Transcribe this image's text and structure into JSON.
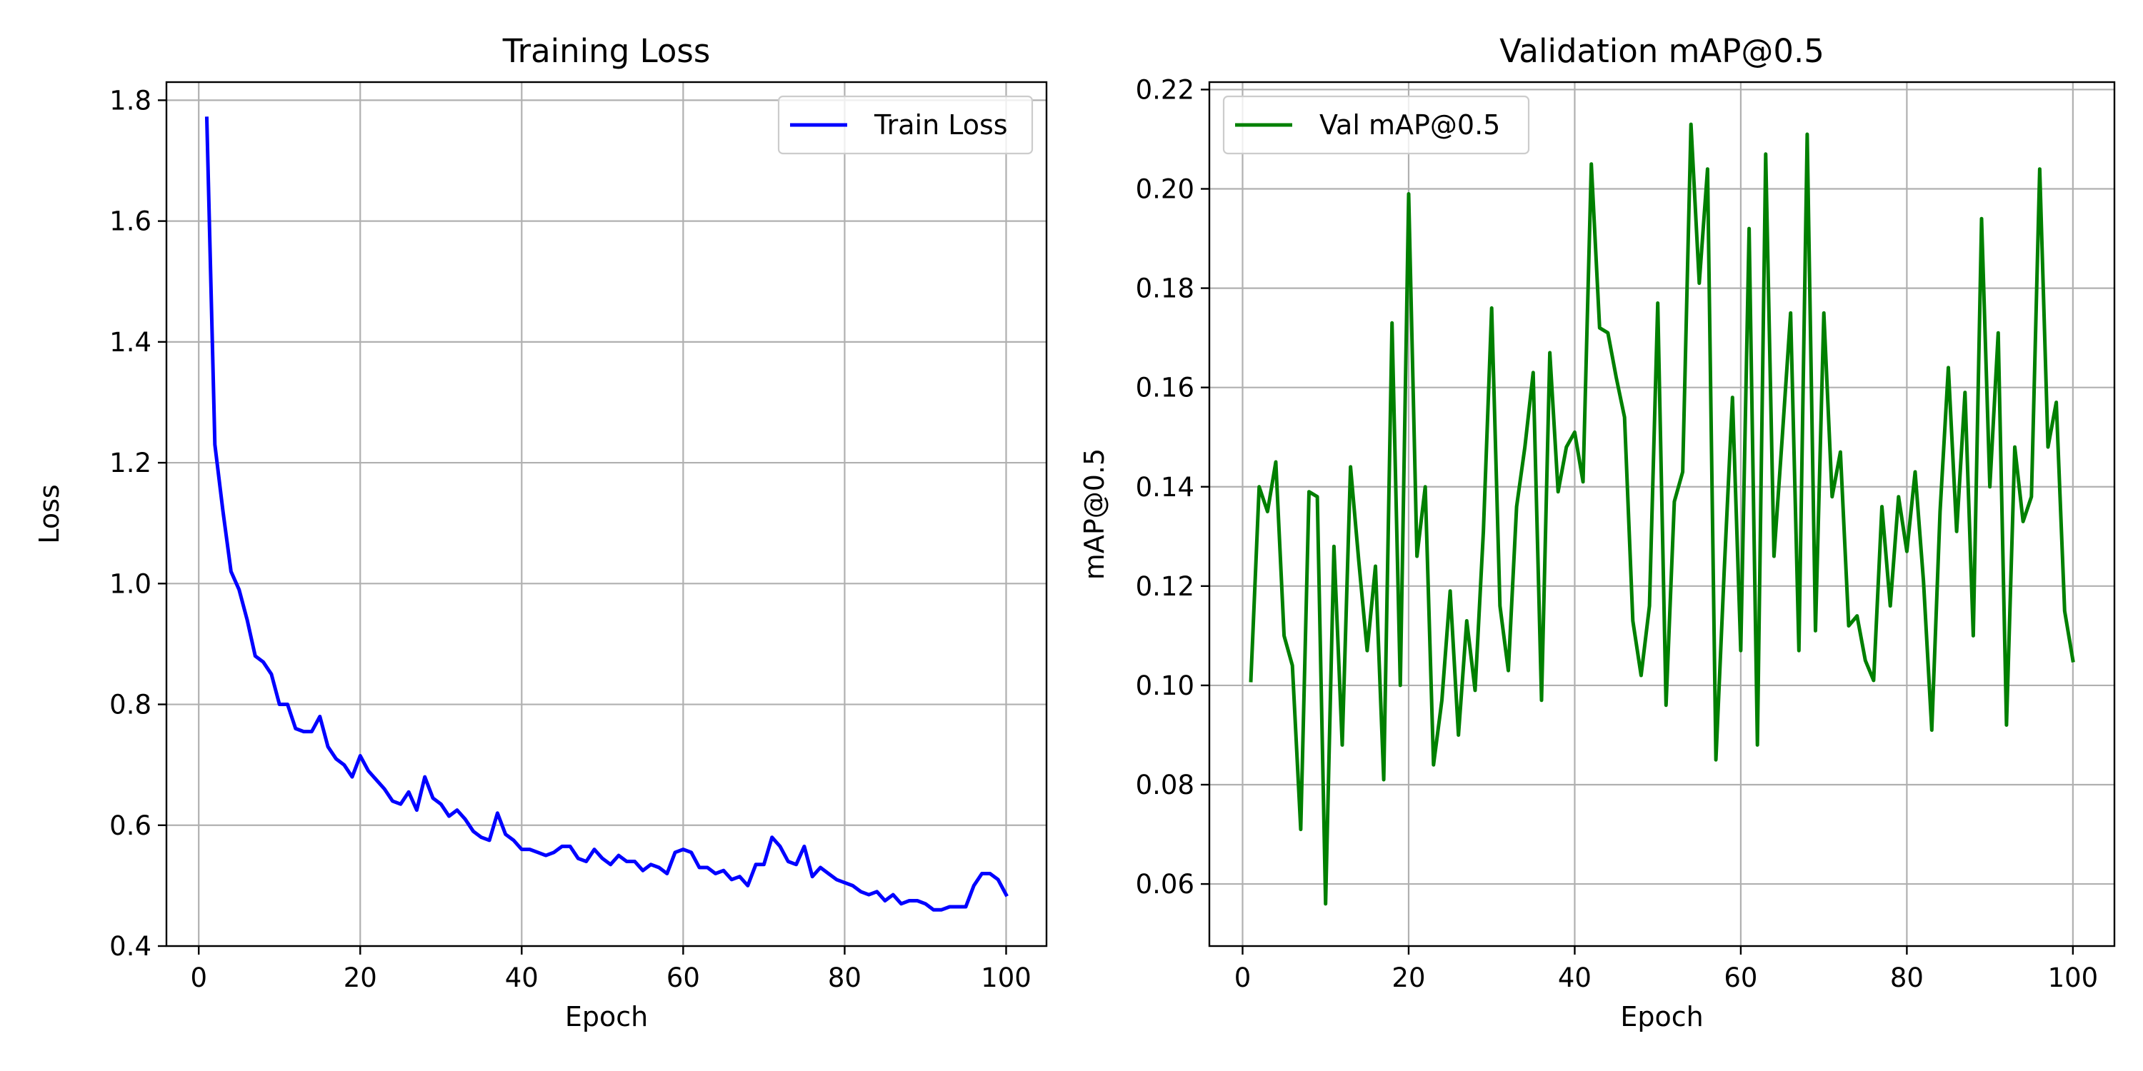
{
  "chart_data": [
    {
      "type": "line",
      "title": "Training Loss",
      "xlabel": "Epoch",
      "ylabel": "Loss",
      "xlim": [
        -4,
        105
      ],
      "ylim": [
        0.4,
        1.83
      ],
      "xticks": [
        0,
        20,
        40,
        60,
        80,
        100
      ],
      "yticks": [
        0.4,
        0.6,
        0.8,
        1.0,
        1.2,
        1.4,
        1.6,
        1.8
      ],
      "ytick_decimals": 1,
      "grid": true,
      "legend_position": "upper right",
      "series": [
        {
          "name": "Train Loss",
          "color": "#0000ff",
          "x": [
            1,
            2,
            3,
            4,
            5,
            6,
            7,
            8,
            9,
            10,
            11,
            12,
            13,
            14,
            15,
            16,
            17,
            18,
            19,
            20,
            21,
            22,
            23,
            24,
            25,
            26,
            27,
            28,
            29,
            30,
            31,
            32,
            33,
            34,
            35,
            36,
            37,
            38,
            39,
            40,
            41,
            42,
            43,
            44,
            45,
            46,
            47,
            48,
            49,
            50,
            51,
            52,
            53,
            54,
            55,
            56,
            57,
            58,
            59,
            60,
            61,
            62,
            63,
            64,
            65,
            66,
            67,
            68,
            69,
            70,
            71,
            72,
            73,
            74,
            75,
            76,
            77,
            78,
            79,
            80,
            81,
            82,
            83,
            84,
            85,
            86,
            87,
            88,
            89,
            90,
            91,
            92,
            93,
            94,
            95,
            96,
            97,
            98,
            99,
            100
          ],
          "values": [
            1.77,
            1.23,
            1.12,
            1.02,
            0.99,
            0.94,
            0.88,
            0.87,
            0.85,
            0.8,
            0.8,
            0.76,
            0.755,
            0.755,
            0.78,
            0.73,
            0.71,
            0.7,
            0.68,
            0.715,
            0.69,
            0.675,
            0.66,
            0.64,
            0.635,
            0.655,
            0.625,
            0.68,
            0.645,
            0.635,
            0.615,
            0.625,
            0.61,
            0.59,
            0.58,
            0.575,
            0.62,
            0.585,
            0.575,
            0.56,
            0.56,
            0.555,
            0.55,
            0.555,
            0.565,
            0.565,
            0.545,
            0.54,
            0.56,
            0.545,
            0.535,
            0.55,
            0.54,
            0.54,
            0.525,
            0.535,
            0.53,
            0.52,
            0.555,
            0.56,
            0.555,
            0.53,
            0.53,
            0.52,
            0.525,
            0.51,
            0.515,
            0.5,
            0.535,
            0.535,
            0.58,
            0.565,
            0.54,
            0.535,
            0.565,
            0.515,
            0.53,
            0.52,
            0.51,
            0.505,
            0.5,
            0.49,
            0.485,
            0.49,
            0.475,
            0.485,
            0.47,
            0.475,
            0.475,
            0.47,
            0.46,
            0.46,
            0.465,
            0.465,
            0.465,
            0.5,
            0.52,
            0.52,
            0.51,
            0.485
          ]
        }
      ]
    },
    {
      "type": "line",
      "title": "Validation mAP@0.5",
      "xlabel": "Epoch",
      "ylabel": "mAP@0.5",
      "xlim": [
        -4,
        105
      ],
      "ylim": [
        0.0475,
        0.2215
      ],
      "xticks": [
        0,
        20,
        40,
        60,
        80,
        100
      ],
      "yticks": [
        0.06,
        0.08,
        0.1,
        0.12,
        0.14,
        0.16,
        0.18,
        0.2,
        0.22
      ],
      "ytick_decimals": 2,
      "grid": true,
      "legend_position": "upper left",
      "series": [
        {
          "name": "Val mAP@0.5",
          "color": "#008000",
          "x": [
            1,
            2,
            3,
            4,
            5,
            6,
            7,
            8,
            9,
            10,
            11,
            12,
            13,
            14,
            15,
            16,
            17,
            18,
            19,
            20,
            21,
            22,
            23,
            24,
            25,
            26,
            27,
            28,
            29,
            30,
            31,
            32,
            33,
            34,
            35,
            36,
            37,
            38,
            39,
            40,
            41,
            42,
            43,
            44,
            45,
            46,
            47,
            48,
            49,
            50,
            51,
            52,
            53,
            54,
            55,
            56,
            57,
            58,
            59,
            60,
            61,
            62,
            63,
            64,
            65,
            66,
            67,
            68,
            69,
            70,
            71,
            72,
            73,
            74,
            75,
            76,
            77,
            78,
            79,
            80,
            81,
            82,
            83,
            84,
            85,
            86,
            87,
            88,
            89,
            90,
            91,
            92,
            93,
            94,
            95,
            96,
            97,
            98,
            99,
            100
          ],
          "values": [
            0.101,
            0.14,
            0.135,
            0.145,
            0.11,
            0.104,
            0.071,
            0.139,
            0.138,
            0.056,
            0.128,
            0.088,
            0.144,
            0.125,
            0.107,
            0.124,
            0.081,
            0.173,
            0.1,
            0.199,
            0.126,
            0.14,
            0.084,
            0.097,
            0.119,
            0.09,
            0.113,
            0.099,
            0.131,
            0.176,
            0.116,
            0.103,
            0.136,
            0.148,
            0.163,
            0.097,
            0.167,
            0.139,
            0.148,
            0.151,
            0.141,
            0.205,
            0.172,
            0.171,
            0.162,
            0.154,
            0.113,
            0.102,
            0.116,
            0.177,
            0.096,
            0.137,
            0.143,
            0.213,
            0.181,
            0.204,
            0.085,
            0.123,
            0.158,
            0.107,
            0.192,
            0.088,
            0.207,
            0.126,
            0.15,
            0.175,
            0.107,
            0.211,
            0.111,
            0.175,
            0.138,
            0.147,
            0.112,
            0.114,
            0.105,
            0.101,
            0.136,
            0.116,
            0.138,
            0.127,
            0.143,
            0.121,
            0.091,
            0.135,
            0.164,
            0.131,
            0.159,
            0.11,
            0.194,
            0.14,
            0.171,
            0.092,
            0.148,
            0.133,
            0.138,
            0.204,
            0.148,
            0.157,
            0.115,
            0.105
          ]
        }
      ]
    }
  ]
}
